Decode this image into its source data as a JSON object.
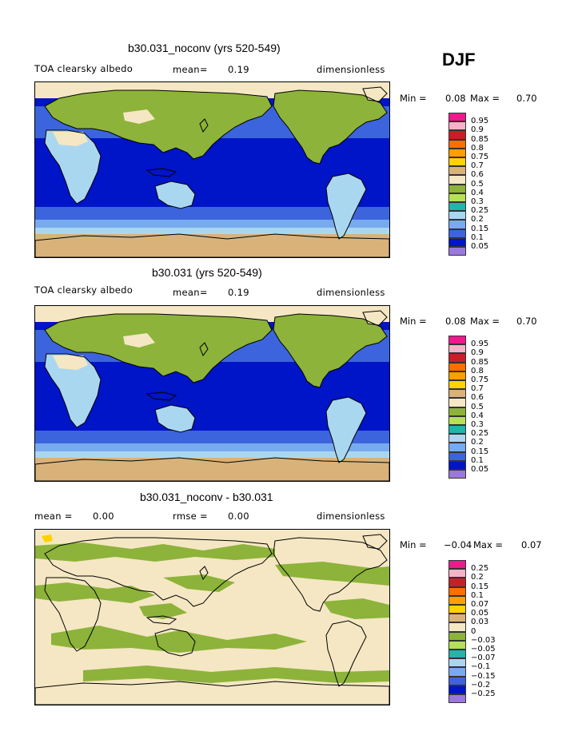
{
  "season": "DJF",
  "panels": [
    {
      "title": "b30.031_noconv (yrs 520-549)",
      "left_label": "TOA clearsky albedo",
      "stat_label": "mean=",
      "stat_value": "0.19",
      "units": "dimensionless",
      "min_label": "Min =",
      "min_value": "0.08",
      "max_label": "Max =",
      "max_value": "0.70",
      "kind": "albedo"
    },
    {
      "title": "b30.031 (yrs 520-549)",
      "left_label": "TOA clearsky albedo",
      "stat_label": "mean=",
      "stat_value": "0.19",
      "units": "dimensionless",
      "min_label": "Min =",
      "min_value": "0.08",
      "max_label": "Max =",
      "max_value": "0.70",
      "kind": "albedo"
    },
    {
      "title": "b30.031_noconv - b30.031",
      "left_label": "mean =",
      "left_value": "0.00",
      "stat_label": "rmse =",
      "stat_value": "0.00",
      "units": "dimensionless",
      "min_label": "Min =",
      "min_value": "−0.04",
      "max_label": "Max =",
      "max_value": "0.07",
      "kind": "diff"
    }
  ],
  "colorbars": {
    "albedo": {
      "labels": [
        "0.95",
        "0.9",
        "0.85",
        "0.8",
        "0.75",
        "0.7",
        "0.6",
        "0.5",
        "0.4",
        "0.3",
        "0.25",
        "0.2",
        "0.15",
        "0.1",
        "0.05"
      ],
      "colors": [
        "#f0188c",
        "#f4b4c8",
        "#c81e28",
        "#ff6e00",
        "#ffa000",
        "#ffd200",
        "#d9b27a",
        "#f5e7c3",
        "#8db33a",
        "#b6e05a",
        "#23b4aa",
        "#aad7f0",
        "#78aaf0",
        "#3c64dc",
        "#0014c8",
        "#9b78dc"
      ]
    },
    "diff": {
      "labels": [
        "0.25",
        "0.2",
        "0.15",
        "0.1",
        "0.07",
        "0.05",
        "0.03",
        "0",
        "−0.03",
        "−0.05",
        "−0.07",
        "−0.1",
        "−0.15",
        "−0.2",
        "−0.25"
      ],
      "colors": [
        "#f0188c",
        "#f4b4c8",
        "#c81e28",
        "#ff6e00",
        "#ffa000",
        "#ffd200",
        "#d9b27a",
        "#f5e7c3",
        "#8db33a",
        "#b6e05a",
        "#23b4aa",
        "#aad7f0",
        "#78aaf0",
        "#3c64dc",
        "#0014c8",
        "#9b78dc"
      ]
    }
  }
}
